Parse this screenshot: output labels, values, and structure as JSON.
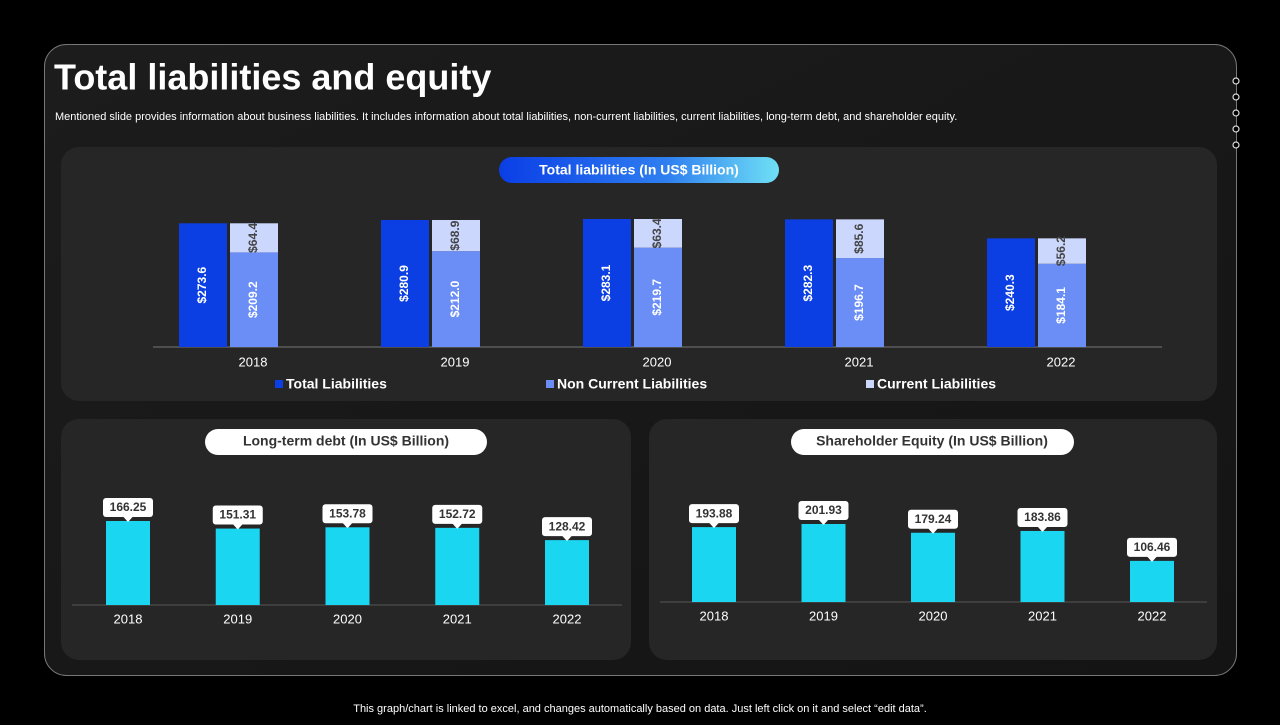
{
  "title": "Total liabilities and equity",
  "subtitle": "Mentioned slide provides information about business liabilities. It includes information about total liabilities, non-current liabilities, current liabilities, long-term debt, and shareholder equity.",
  "footer": "This graph/chart is linked to excel, and changes automatically based on data. Just left click on it and select “edit data”.",
  "chart_data": [
    {
      "type": "bar",
      "title": "Total liabilities (In US$ Billion)",
      "categories": [
        "2018",
        "2019",
        "2020",
        "2021",
        "2022"
      ],
      "series": [
        {
          "name": "Total Liabilities",
          "color": "#0b3fe3",
          "values": [
            273.6,
            280.9,
            283.1,
            282.3,
            240.3
          ],
          "value_labels": [
            "$273.6",
            "$280.9",
            "$283.1",
            "$282.3",
            "$240.3"
          ]
        },
        {
          "name": "Non Current Liabilities",
          "color": "#6a8df6",
          "values": [
            209.2,
            212.0,
            219.7,
            196.7,
            184.1
          ],
          "value_labels": [
            "$209.2",
            "$212.0",
            "$219.7",
            "$196.7",
            "$184.1"
          ]
        },
        {
          "name": "Current Liabilities",
          "color": "#cbd7fc",
          "values": [
            64.4,
            68.9,
            63.4,
            85.6,
            56.2
          ],
          "value_labels": [
            "$64.4",
            "$68.9",
            "$63.4",
            "$85.6",
            "$56.2"
          ]
        }
      ]
    },
    {
      "type": "bar",
      "title": "Long-term debt (In US$ Billion)",
      "color": "#1bd6f0",
      "categories": [
        "2018",
        "2019",
        "2020",
        "2021",
        "2022"
      ],
      "values": [
        166.25,
        151.31,
        153.78,
        152.72,
        128.42
      ]
    },
    {
      "type": "bar",
      "title": "Shareholder Equity (In US$ Billion)",
      "color": "#1bd6f0",
      "categories": [
        "2018",
        "2019",
        "2020",
        "2021",
        "2022"
      ],
      "values": [
        193.88,
        201.93,
        179.24,
        183.86,
        106.46
      ]
    }
  ]
}
